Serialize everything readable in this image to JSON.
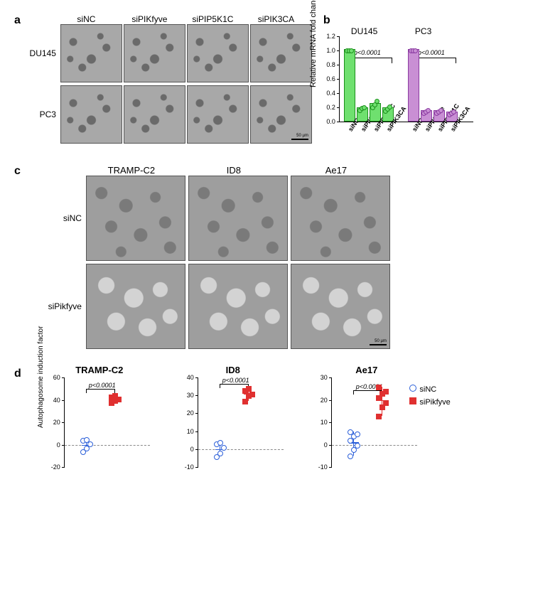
{
  "panels": {
    "a": "a",
    "b": "b",
    "c": "c",
    "d": "d"
  },
  "panel_a": {
    "col_labels": [
      "siNC",
      "siPIKfyve",
      "siPIP5K1C",
      "siPIK3CA"
    ],
    "row_labels": [
      "DU145",
      "PC3"
    ],
    "scale_label": "50 µm"
  },
  "panel_b": {
    "type": "bar",
    "ylabel": "Relative mRNA fold change",
    "ylim": [
      0,
      1.2
    ],
    "ytick_step": 0.2,
    "groups": [
      {
        "label": "DU145",
        "color": "#6fe06f",
        "border": "#1b8f1b",
        "categories": [
          "siNC",
          "siPIKfyve",
          "siPIP5K1C",
          "siPIK3CA"
        ],
        "values": [
          1.0,
          0.18,
          0.24,
          0.18
        ],
        "scatter": [
          [
            1.0,
            1.0,
            1.0
          ],
          [
            0.16,
            0.19,
            0.2
          ],
          [
            0.2,
            0.24,
            0.29
          ],
          [
            0.15,
            0.18,
            0.21
          ]
        ]
      },
      {
        "label": "PC3",
        "color": "#c98fd4",
        "border": "#8a3aa0",
        "categories": [
          "siNC",
          "siPIKfyve",
          "siPIP5K1C",
          "siPIK3CA"
        ],
        "values": [
          1.0,
          0.14,
          0.14,
          0.12
        ],
        "scatter": [
          [
            1.0,
            1.0,
            1.0
          ],
          [
            0.12,
            0.14,
            0.16
          ],
          [
            0.12,
            0.14,
            0.16
          ],
          [
            0.1,
            0.12,
            0.14
          ]
        ]
      }
    ],
    "pvalue": "p<0.0001"
  },
  "panel_c": {
    "col_labels": [
      "TRAMP-C2",
      "ID8",
      "Ae17"
    ],
    "row_labels": [
      "siNC",
      "siPikfyve"
    ],
    "scale_label": "50 µm"
  },
  "panel_d": {
    "ylabel": "Autophagosome induction factor",
    "legend": [
      {
        "label": "siNC",
        "color": "#2b5fd9",
        "shape": "circle"
      },
      {
        "label": "siPikfyve",
        "color": "#e03030",
        "shape": "square"
      }
    ],
    "pvalue": "p<0.0001",
    "charts": [
      {
        "title": "TRAMP-C2",
        "ylim": [
          -20,
          60
        ],
        "yticks": [
          -20,
          0,
          20,
          40,
          60
        ],
        "group1": {
          "mean": 0,
          "points": [
            -6,
            -3,
            1,
            4,
            5
          ],
          "color": "#2b5fd9",
          "x": 30
        },
        "group2": {
          "mean": 41,
          "points": [
            38,
            40,
            41,
            43,
            44
          ],
          "color": "#e03030",
          "x": 70
        }
      },
      {
        "title": "ID8",
        "ylim": [
          -10,
          40
        ],
        "yticks": [
          -10,
          0,
          10,
          20,
          30,
          40
        ],
        "group1": {
          "mean": 0,
          "points": [
            -4,
            -2,
            1,
            3,
            4
          ],
          "color": "#2b5fd9",
          "x": 30
        },
        "group2": {
          "mean": 31,
          "points": [
            27,
            30,
            31,
            33,
            34
          ],
          "color": "#e03030",
          "x": 70
        }
      },
      {
        "title": "Ae17",
        "ylim": [
          -10,
          30
        ],
        "yticks": [
          -10,
          0,
          10,
          20,
          30
        ],
        "group1": {
          "mean": 1,
          "points": [
            -5,
            -2,
            0,
            2,
            4,
            5,
            6
          ],
          "color": "#2b5fd9",
          "x": 30
        },
        "group2": {
          "mean": 20,
          "points": [
            13,
            17,
            19,
            21,
            23,
            24,
            26
          ],
          "color": "#e03030",
          "x": 70
        }
      }
    ]
  },
  "colors": {
    "bg": "#ffffff",
    "axis": "#000000",
    "blue": "#2b5fd9",
    "red": "#e03030"
  }
}
